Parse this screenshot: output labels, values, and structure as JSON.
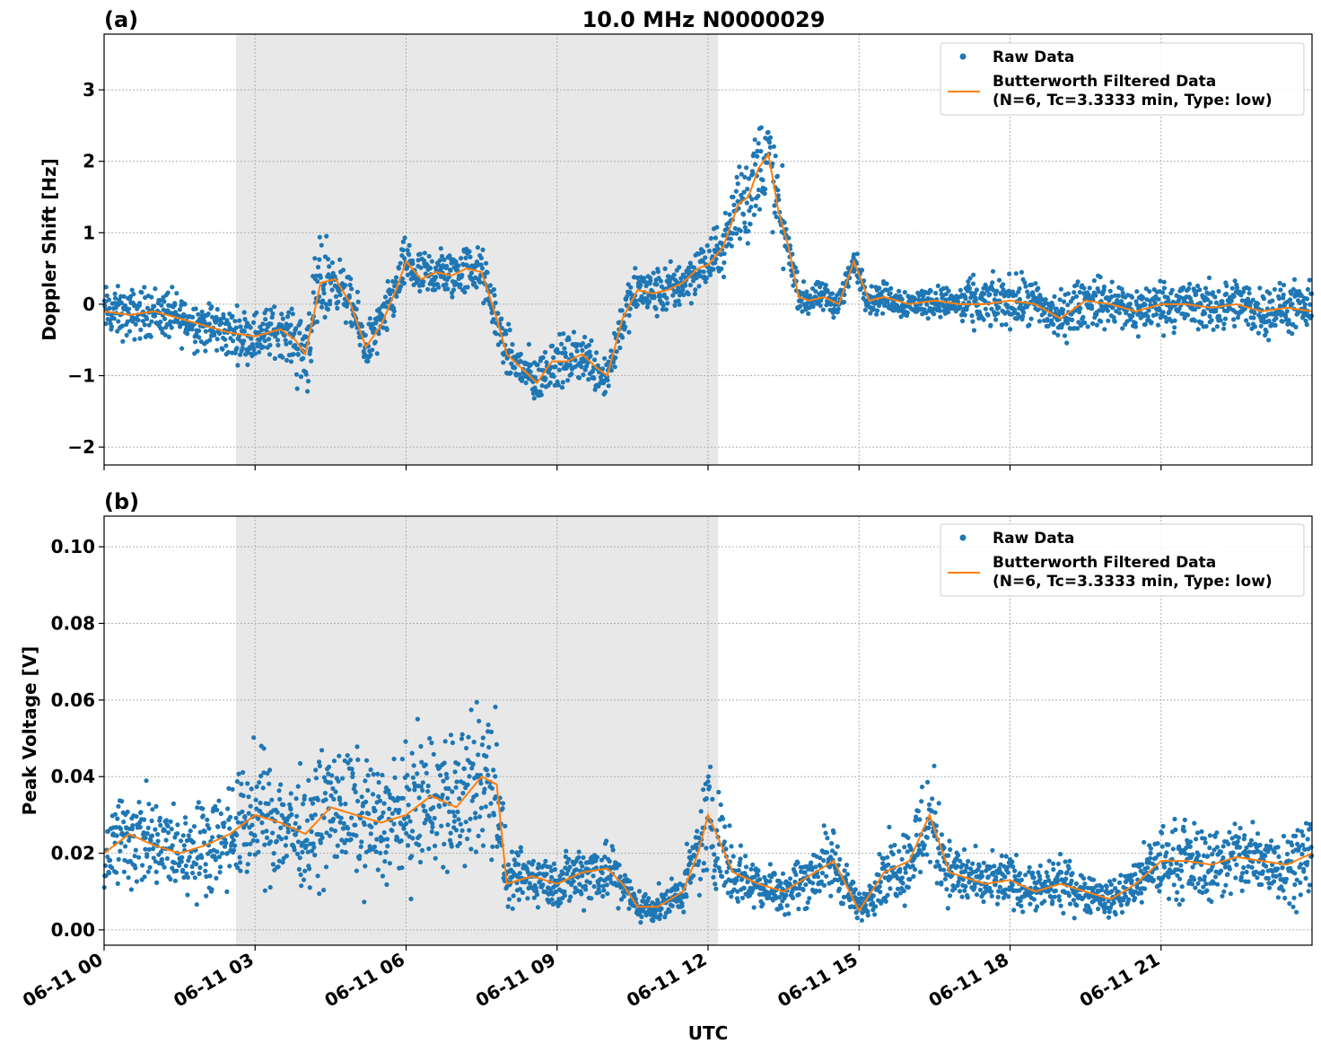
{
  "figure": {
    "title": "10.0 MHz N0000029",
    "xlabel": "UTC",
    "x_ticks": [
      "06-11 00",
      "06-11 03",
      "06-11 06",
      "06-11 09",
      "06-11 12",
      "06-11 15",
      "06-11 18",
      "06-11 21"
    ],
    "x_range_hours": [
      0,
      24
    ],
    "shaded_span_hours": [
      2.62,
      12.2
    ],
    "colors": {
      "raw": "#1f77b4",
      "filtered": "#ff7f0e",
      "shade": "#e8e8e8",
      "grid": "#b0b0b0"
    }
  },
  "legend": {
    "raw_label": "Raw Data",
    "filt_line1": "Butterworth Filtered Data",
    "filt_line2": "(N=6, Tc=3.3333 min, Type: low)",
    "placement": "top-right"
  },
  "panels": {
    "a": {
      "label": "(a)",
      "ylabel": "Doppler Shift [Hz]",
      "y_ticks": [
        "3",
        "2",
        "1",
        "0",
        "−1",
        "−2"
      ]
    },
    "b": {
      "label": "(b)",
      "ylabel": "Peak Voltage [V]",
      "y_ticks": [
        "0.10",
        "0.08",
        "0.06",
        "0.04",
        "0.02",
        "0.00"
      ]
    }
  },
  "chart_data": [
    {
      "type": "scatter",
      "panel": "a",
      "ylim": [
        -2.25,
        3.78
      ],
      "grid": true,
      "series": [
        {
          "name": "Raw Data",
          "kind": "points",
          "band": "filtered ± spread"
        },
        {
          "name": "Butterworth Filtered Data (N=6, Tc=3.3333 min, Type: low)",
          "kind": "line",
          "x": [
            0,
            0.5,
            1.0,
            1.5,
            2.0,
            2.5,
            3.0,
            3.5,
            3.8,
            4.0,
            4.3,
            4.6,
            4.9,
            5.2,
            5.5,
            5.8,
            6.0,
            6.3,
            6.6,
            6.9,
            7.2,
            7.5,
            7.8,
            8.0,
            8.3,
            8.6,
            8.9,
            9.2,
            9.5,
            9.8,
            10.0,
            10.3,
            10.6,
            10.9,
            11.2,
            11.5,
            11.8,
            12.0,
            12.3,
            12.6,
            12.8,
            13.0,
            13.2,
            13.4,
            13.6,
            13.8,
            14.0,
            14.3,
            14.6,
            14.9,
            15.2,
            15.5,
            16.0,
            16.5,
            17.0,
            17.5,
            18.0,
            18.5,
            19.0,
            19.5,
            20.0,
            20.5,
            21.0,
            21.5,
            22.0,
            22.5,
            23.0,
            23.5,
            24.0
          ],
          "y": [
            -0.1,
            -0.15,
            -0.1,
            -0.2,
            -0.3,
            -0.4,
            -0.45,
            -0.35,
            -0.5,
            -0.7,
            0.3,
            0.35,
            0.0,
            -0.6,
            -0.3,
            0.2,
            0.6,
            0.35,
            0.45,
            0.4,
            0.5,
            0.45,
            -0.2,
            -0.7,
            -0.9,
            -1.1,
            -0.8,
            -0.8,
            -0.7,
            -0.9,
            -1.0,
            -0.2,
            0.2,
            0.15,
            0.2,
            0.3,
            0.5,
            0.55,
            0.8,
            1.4,
            1.5,
            1.9,
            2.1,
            1.3,
            0.8,
            0.1,
            0.05,
            0.1,
            0.0,
            0.6,
            0.05,
            0.1,
            0.0,
            0.05,
            0.0,
            0.0,
            0.05,
            0.0,
            -0.2,
            0.05,
            0.0,
            -0.1,
            0.0,
            0.0,
            -0.05,
            0.0,
            -0.1,
            -0.05,
            -0.1
          ]
        }
      ]
    },
    {
      "type": "scatter",
      "panel": "b",
      "ylim": [
        -0.004,
        0.108
      ],
      "grid": true,
      "series": [
        {
          "name": "Raw Data",
          "kind": "points",
          "band": "filtered ± spread"
        },
        {
          "name": "Butterworth Filtered Data (N=6, Tc=3.3333 min, Type: low)",
          "kind": "line",
          "x": [
            0,
            0.5,
            1.0,
            1.5,
            2.0,
            2.5,
            3.0,
            3.5,
            4.0,
            4.5,
            5.0,
            5.5,
            6.0,
            6.5,
            7.0,
            7.5,
            7.8,
            8.0,
            8.5,
            9.0,
            9.5,
            10.0,
            10.3,
            10.6,
            11.0,
            11.5,
            11.8,
            12.0,
            12.5,
            13.0,
            13.5,
            14.0,
            14.5,
            15.0,
            15.5,
            16.0,
            16.4,
            16.8,
            17.5,
            18.0,
            18.5,
            19.0,
            19.5,
            20.0,
            20.5,
            21.0,
            21.5,
            22.0,
            22.5,
            23.0,
            23.5,
            24.0
          ],
          "y": [
            0.02,
            0.025,
            0.022,
            0.02,
            0.022,
            0.025,
            0.03,
            0.028,
            0.025,
            0.032,
            0.03,
            0.028,
            0.03,
            0.035,
            0.032,
            0.04,
            0.038,
            0.012,
            0.014,
            0.012,
            0.015,
            0.016,
            0.012,
            0.006,
            0.006,
            0.01,
            0.02,
            0.03,
            0.015,
            0.012,
            0.01,
            0.014,
            0.018,
            0.005,
            0.015,
            0.018,
            0.03,
            0.015,
            0.012,
            0.013,
            0.01,
            0.012,
            0.01,
            0.008,
            0.012,
            0.018,
            0.018,
            0.017,
            0.019,
            0.018,
            0.017,
            0.02
          ]
        }
      ]
    }
  ]
}
